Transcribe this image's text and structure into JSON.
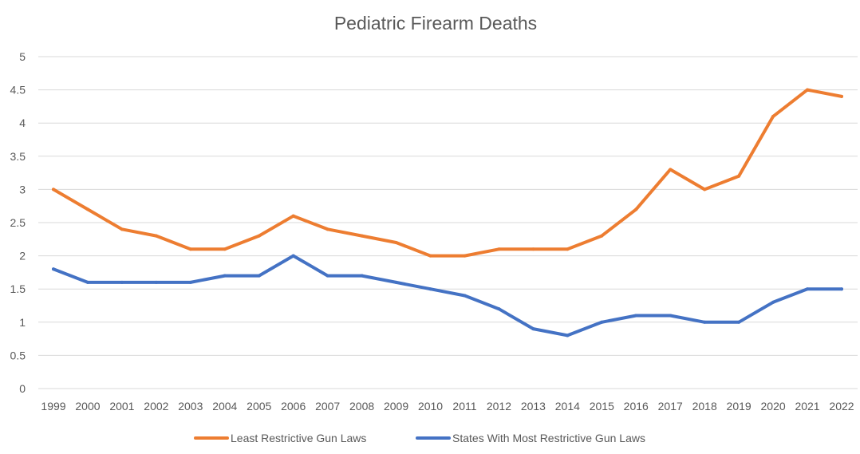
{
  "chart_data": {
    "type": "line",
    "title": "Pediatric Firearm Deaths",
    "xlabel": "",
    "ylabel": "",
    "ylim": [
      0,
      5
    ],
    "yticks": [
      "0",
      "0.5",
      "1",
      "1.5",
      "2",
      "2.5",
      "3",
      "3.5",
      "4",
      "4.5",
      "5"
    ],
    "grid": true,
    "legend_position": "bottom",
    "categories": [
      "1999",
      "2000",
      "2001",
      "2002",
      "2003",
      "2004",
      "2005",
      "2006",
      "2007",
      "2008",
      "2009",
      "2010",
      "2011",
      "2012",
      "2013",
      "2014",
      "2015",
      "2016",
      "2017",
      "2018",
      "2019",
      "2020",
      "2021",
      "2022"
    ],
    "series": [
      {
        "name": "Least Restrictive Gun Laws",
        "color": "#ED7D31",
        "values": [
          3.0,
          2.7,
          2.4,
          2.3,
          2.1,
          2.1,
          2.3,
          2.6,
          2.4,
          2.3,
          2.2,
          2.0,
          2.0,
          2.1,
          2.1,
          2.1,
          2.3,
          2.7,
          3.3,
          3.0,
          3.2,
          4.1,
          4.5,
          4.4
        ]
      },
      {
        "name": "States With Most Restrictive Gun Laws",
        "color": "#4472C4",
        "values": [
          1.8,
          1.6,
          1.6,
          1.6,
          1.6,
          1.7,
          1.7,
          2.0,
          1.7,
          1.7,
          1.6,
          1.5,
          1.4,
          1.2,
          0.9,
          0.8,
          1.0,
          1.1,
          1.1,
          1.0,
          1.0,
          1.3,
          1.5,
          1.5
        ]
      }
    ]
  }
}
